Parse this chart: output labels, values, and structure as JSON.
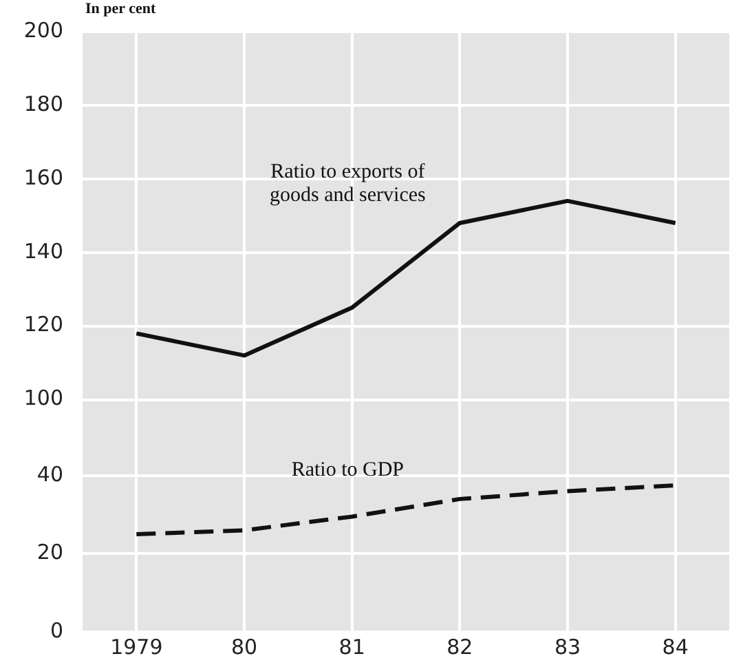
{
  "chart_data": [
    {
      "type": "line",
      "ylabel": "In per cent",
      "categories": [
        "1979",
        "80",
        "81",
        "82",
        "83",
        "84"
      ],
      "series": [
        {
          "name": "Ratio to exports of goods and services",
          "color": "#111111",
          "values": [
            118,
            112,
            125,
            148,
            154,
            148
          ]
        }
      ],
      "ylim": [
        90,
        200
      ],
      "yticks": [
        100,
        120,
        140,
        160,
        180,
        200
      ],
      "grid": true,
      "legend": false,
      "line_style": "solid",
      "marker": "none",
      "tick_labels": "y"
    },
    {
      "type": "line",
      "categories": [
        "1979",
        "80",
        "81",
        "82",
        "83",
        "84"
      ],
      "series": [
        {
          "name": "Ratio to GDP",
          "color": "#111111",
          "values": [
            25,
            26,
            29.5,
            34,
            36,
            37.5
          ]
        }
      ],
      "ylim": [
        0,
        50
      ],
      "yticks": [
        0,
        20,
        40
      ],
      "grid": true,
      "legend": false,
      "line_style": "dashed",
      "marker": "none"
    }
  ]
}
